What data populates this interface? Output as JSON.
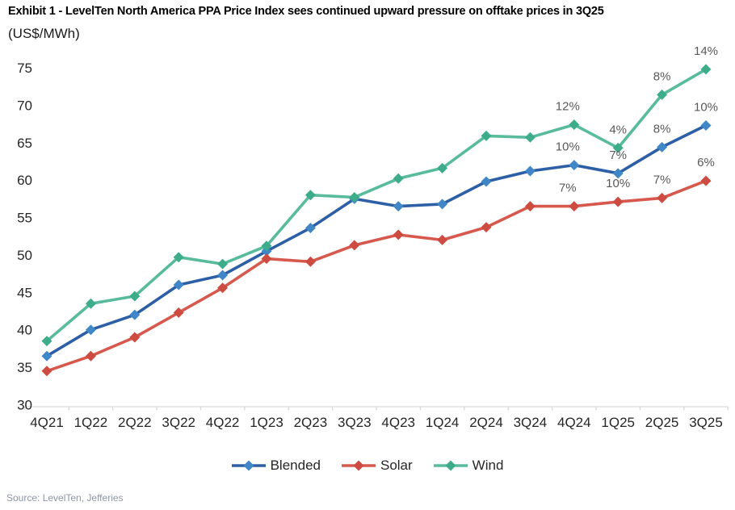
{
  "chart_data": {
    "type": "line",
    "title": "Exhibit 1 - LevelTen North America PPA Price Index sees continued upward pressure on offtake prices in 3Q25",
    "unit_label": "(US$/MWh)",
    "categories": [
      "4Q21",
      "1Q22",
      "2Q22",
      "3Q22",
      "4Q22",
      "1Q23",
      "2Q23",
      "3Q23",
      "4Q23",
      "1Q24",
      "2Q24",
      "3Q24",
      "4Q24",
      "1Q25",
      "2Q25",
      "3Q25"
    ],
    "series": [
      {
        "name": "Blended",
        "line_color": "#2d5fa6",
        "marker_color": "#3f87c7",
        "values": [
          36.5,
          40.0,
          42.0,
          46.0,
          47.3,
          50.5,
          53.6,
          57.5,
          56.5,
          56.8,
          59.8,
          61.2,
          62.0,
          60.9,
          64.4,
          67.3
        ]
      },
      {
        "name": "Solar",
        "line_color": "#d7584d",
        "marker_color": "#cd4b40",
        "values": [
          34.5,
          36.5,
          39.0,
          42.3,
          45.6,
          49.5,
          49.1,
          51.3,
          52.7,
          52.0,
          53.7,
          56.5,
          56.5,
          57.1,
          57.6,
          59.9
        ]
      },
      {
        "name": "Wind",
        "line_color": "#58bb9c",
        "marker_color": "#3dac8b",
        "values": [
          38.5,
          43.5,
          44.5,
          49.7,
          48.8,
          51.2,
          58.0,
          57.7,
          60.2,
          61.6,
          65.9,
          65.7,
          67.4,
          64.3,
          71.4,
          74.8
        ]
      }
    ],
    "annotations": [
      {
        "category": "4Q24",
        "series": "Wind",
        "text": "12%"
      },
      {
        "category": "4Q24",
        "series": "Blended",
        "text": "10%"
      },
      {
        "category": "4Q24",
        "series": "Solar",
        "text": "7%"
      },
      {
        "category": "1Q25",
        "series": "Wind",
        "text": "4%"
      },
      {
        "category": "1Q25",
        "series": "Blended",
        "text": "7%"
      },
      {
        "category": "1Q25",
        "series": "Solar",
        "text": "10%"
      },
      {
        "category": "2Q25",
        "series": "Wind",
        "text": "8%"
      },
      {
        "category": "2Q25",
        "series": "Blended",
        "text": "8%"
      },
      {
        "category": "2Q25",
        "series": "Solar",
        "text": "7%"
      },
      {
        "category": "3Q25",
        "series": "Wind",
        "text": "14%"
      },
      {
        "category": "3Q25",
        "series": "Blended",
        "text": "10%"
      },
      {
        "category": "3Q25",
        "series": "Solar",
        "text": "6%"
      }
    ],
    "ylim": [
      30,
      75
    ],
    "ytick_step": 5,
    "grid": false,
    "legend_position": "bottom",
    "annotation_color": "#595959",
    "axis_text_color": "#262626",
    "axis_line_color": "#d9d9d9"
  },
  "source": "Source: LevelTen, Jefferies"
}
